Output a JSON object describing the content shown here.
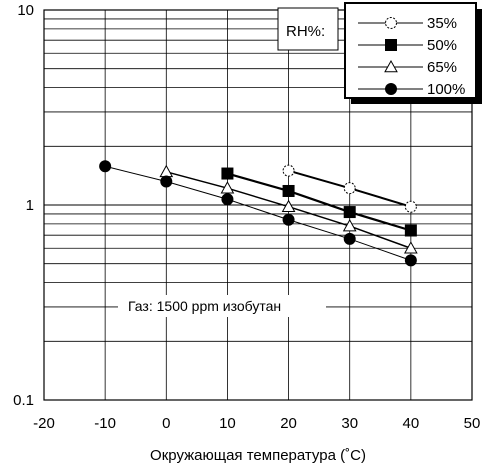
{
  "chart_data": {
    "type": "line",
    "title": "",
    "xlabel": "Окружающая температура (˚C)",
    "ylabel": "",
    "xlim": [
      -20,
      50
    ],
    "ylim": [
      0.1,
      10
    ],
    "yscale": "log",
    "grid": true,
    "x_ticks": [
      "-20",
      "-10",
      "0",
      "10",
      "20",
      "30",
      "40",
      "50"
    ],
    "y_ticks": [
      "10",
      "1",
      "0.1"
    ],
    "legend": {
      "title": "RH%:",
      "placement": "top-right",
      "entries": [
        "35%",
        "50%",
        "65%",
        "100%"
      ]
    },
    "annotation": "Газ: 1500 ppm изобутан",
    "series": [
      {
        "name": "35%",
        "marker": "open-circle-dashed",
        "x": [
          20,
          30,
          40
        ],
        "y": [
          1.5,
          1.22,
          0.98
        ]
      },
      {
        "name": "50%",
        "marker": "filled-square",
        "x": [
          10,
          20,
          30,
          40
        ],
        "y": [
          1.45,
          1.18,
          0.92,
          0.74
        ]
      },
      {
        "name": "65%",
        "marker": "open-triangle",
        "x": [
          0,
          10,
          20,
          30,
          40
        ],
        "y": [
          1.48,
          1.22,
          0.98,
          0.78,
          0.6
        ]
      },
      {
        "name": "100%",
        "marker": "filled-circle",
        "x": [
          -10,
          0,
          10,
          20,
          30,
          40
        ],
        "y": [
          1.58,
          1.32,
          1.07,
          0.84,
          0.67,
          0.52
        ]
      }
    ]
  }
}
